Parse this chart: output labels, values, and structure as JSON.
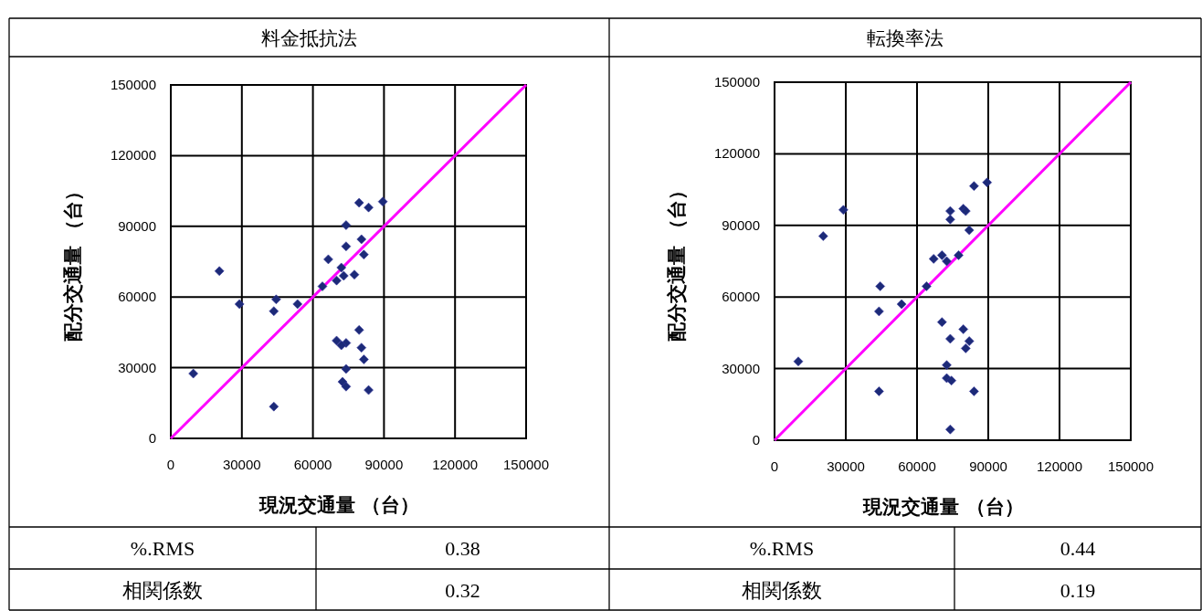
{
  "chart_data": [
    {
      "type": "scatter",
      "title": "料金抵抗法",
      "xlabel": "現況交通量 （台）",
      "ylabel": "配分交通量 （台）",
      "xlim": [
        0,
        150000
      ],
      "ylim": [
        0,
        150000
      ],
      "xticks": [
        0,
        30000,
        60000,
        90000,
        120000,
        150000
      ],
      "yticks": [
        0,
        30000,
        60000,
        90000,
        120000,
        150000
      ],
      "grid": true,
      "marker": "diamond",
      "series": [
        {
          "color": "#1c2a78",
          "x": [
            79500,
            83500,
            89500,
            74000,
            80500,
            74000,
            81500,
            66500,
            20500,
            72000,
            70000,
            73000,
            77500,
            64000,
            44500,
            29000,
            43500,
            53500,
            79500,
            70000,
            74000,
            72000,
            80500,
            81500,
            74000,
            72500,
            74000,
            83500,
            9500,
            43500
          ],
          "values": [
            100000,
            98000,
            100500,
            90500,
            84500,
            81500,
            78000,
            76000,
            71000,
            72500,
            67000,
            69000,
            69500,
            64500,
            59000,
            57000,
            54000,
            57000,
            46000,
            41500,
            40500,
            39500,
            38500,
            33500,
            29500,
            24000,
            22000,
            20500,
            27500,
            13500
          ]
        },
        {
          "type": "line",
          "marker": "none",
          "color": "#ff00ff",
          "x": [
            0,
            150000
          ],
          "values": [
            0,
            150000
          ]
        }
      ],
      "annotations": [
        "%.RMS",
        "0.38",
        "相関係数",
        "0.32"
      ]
    },
    {
      "type": "scatter",
      "title": "転換率法",
      "xlabel": "現況交通量 （台）",
      "ylabel": "配分交通量 （台）",
      "xlim": [
        0,
        150000
      ],
      "ylim": [
        0,
        150000
      ],
      "xticks": [
        0,
        30000,
        60000,
        90000,
        120000,
        150000
      ],
      "yticks": [
        0,
        30000,
        60000,
        90000,
        120000,
        150000
      ],
      "grid": true,
      "marker": "diamond",
      "series": [
        {
          "color": "#1c2a78",
          "x": [
            84000,
            89500,
            29000,
            74000,
            79500,
            80500,
            74000,
            82000,
            20500,
            67000,
            70500,
            72500,
            77500,
            64000,
            44500,
            53500,
            44000,
            70500,
            79500,
            74000,
            82000,
            80500,
            10000,
            72500,
            72500,
            74500,
            84000,
            44000,
            74000
          ],
          "values": [
            106500,
            108000,
            96500,
            96000,
            97000,
            96000,
            92500,
            88000,
            85500,
            76000,
            77500,
            75000,
            77500,
            64500,
            64500,
            57000,
            54000,
            49500,
            46500,
            42500,
            41500,
            38500,
            33000,
            31500,
            26000,
            25000,
            20500,
            20500,
            4500
          ]
        },
        {
          "type": "line",
          "marker": "none",
          "color": "#ff00ff",
          "x": [
            0,
            150000
          ],
          "values": [
            0,
            150000
          ]
        }
      ],
      "annotations": [
        "%.RMS",
        "0.44",
        "相関係数",
        "0.19"
      ]
    }
  ]
}
